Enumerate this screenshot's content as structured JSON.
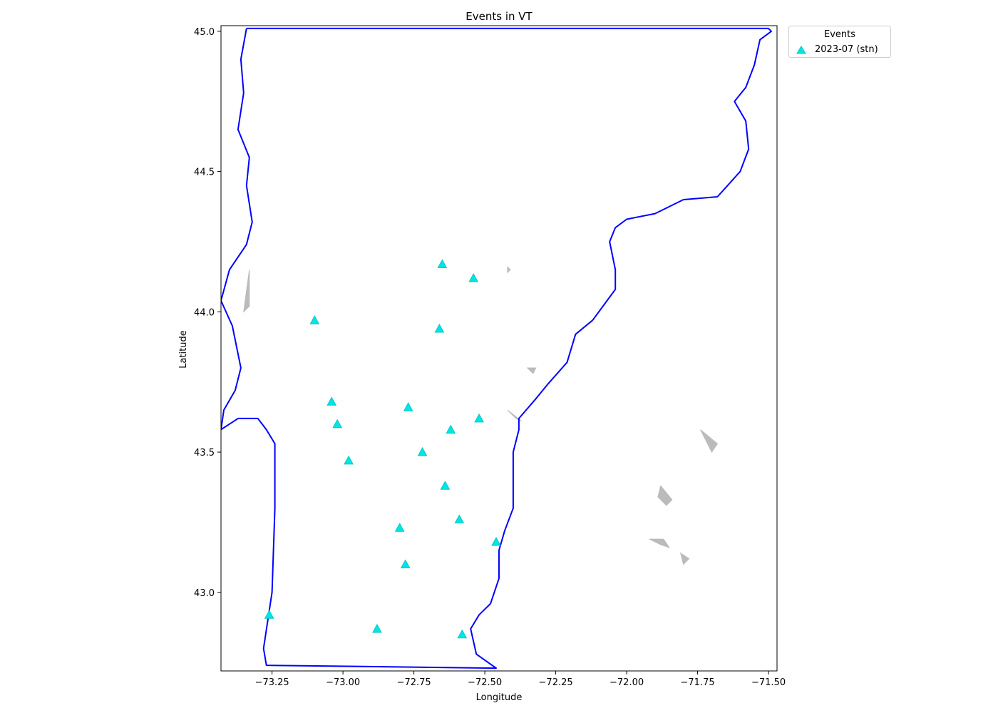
{
  "chart_data": {
    "type": "scatter",
    "title": "Events in VT",
    "xlabel": "Longitude",
    "ylabel": "Latitude",
    "xlim": [
      -73.43,
      -71.47
    ],
    "ylim": [
      42.72,
      45.02
    ],
    "xticks": [
      -73.25,
      -73.0,
      -72.75,
      -72.5,
      -72.25,
      -72.0,
      -71.75,
      -71.5
    ],
    "xtick_labels": [
      "−73.25",
      "−73.00",
      "−72.75",
      "−72.50",
      "−72.25",
      "−72.00",
      "−71.75",
      "−71.50"
    ],
    "yticks": [
      43.0,
      43.5,
      44.0,
      44.5,
      45.0
    ],
    "ytick_labels": [
      "43.0",
      "43.5",
      "44.0",
      "44.5",
      "45.0"
    ],
    "grid": false,
    "legend": {
      "title": "Events",
      "placement": "outside-top-right"
    },
    "series": [
      {
        "name": "2023-07 (stn)",
        "marker": "triangle",
        "color": "#00e5e5",
        "points": [
          {
            "x": -72.65,
            "y": 44.17
          },
          {
            "x": -72.54,
            "y": 44.12
          },
          {
            "x": -73.1,
            "y": 43.97
          },
          {
            "x": -72.66,
            "y": 43.94
          },
          {
            "x": -73.04,
            "y": 43.68
          },
          {
            "x": -72.77,
            "y": 43.66
          },
          {
            "x": -72.52,
            "y": 43.62
          },
          {
            "x": -73.02,
            "y": 43.6
          },
          {
            "x": -72.62,
            "y": 43.58
          },
          {
            "x": -72.72,
            "y": 43.5
          },
          {
            "x": -72.98,
            "y": 43.47
          },
          {
            "x": -72.64,
            "y": 43.38
          },
          {
            "x": -72.59,
            "y": 43.26
          },
          {
            "x": -72.8,
            "y": 43.23
          },
          {
            "x": -72.46,
            "y": 43.18
          },
          {
            "x": -72.78,
            "y": 43.1
          },
          {
            "x": -73.26,
            "y": 42.92
          },
          {
            "x": -72.88,
            "y": 42.87
          },
          {
            "x": -72.58,
            "y": 42.85
          }
        ]
      }
    ],
    "boundary": {
      "name": "Vermont state boundary",
      "color": "#0000ff",
      "points": [
        [
          -73.34,
          45.01
        ],
        [
          -71.5,
          45.01
        ],
        [
          -71.49,
          45.0
        ],
        [
          -71.53,
          44.97
        ],
        [
          -71.55,
          44.88
        ],
        [
          -71.58,
          44.8
        ],
        [
          -71.62,
          44.75
        ],
        [
          -71.58,
          44.68
        ],
        [
          -71.57,
          44.58
        ],
        [
          -71.6,
          44.5
        ],
        [
          -71.68,
          44.41
        ],
        [
          -71.8,
          44.4
        ],
        [
          -71.9,
          44.35
        ],
        [
          -72.0,
          44.33
        ],
        [
          -72.04,
          44.3
        ],
        [
          -72.06,
          44.25
        ],
        [
          -72.04,
          44.15
        ],
        [
          -72.04,
          44.08
        ],
        [
          -72.12,
          43.97
        ],
        [
          -72.18,
          43.92
        ],
        [
          -72.21,
          43.82
        ],
        [
          -72.28,
          43.74
        ],
        [
          -72.32,
          43.69
        ],
        [
          -72.38,
          43.62
        ],
        [
          -72.38,
          43.58
        ],
        [
          -72.4,
          43.5
        ],
        [
          -72.4,
          43.4
        ],
        [
          -72.4,
          43.3
        ],
        [
          -72.43,
          43.22
        ],
        [
          -72.45,
          43.15
        ],
        [
          -72.45,
          43.05
        ],
        [
          -72.48,
          42.96
        ],
        [
          -72.52,
          42.92
        ],
        [
          -72.55,
          42.87
        ],
        [
          -72.53,
          42.78
        ],
        [
          -72.46,
          42.73
        ],
        [
          -73.27,
          42.74
        ],
        [
          -73.28,
          42.8
        ],
        [
          -73.25,
          43.0
        ],
        [
          -73.24,
          43.3
        ],
        [
          -73.24,
          43.53
        ],
        [
          -73.27,
          43.58
        ],
        [
          -73.3,
          43.62
        ],
        [
          -73.37,
          43.62
        ],
        [
          -73.43,
          43.58
        ],
        [
          -73.42,
          43.65
        ],
        [
          -73.38,
          43.72
        ],
        [
          -73.36,
          43.8
        ],
        [
          -73.39,
          43.95
        ],
        [
          -73.43,
          44.04
        ],
        [
          -73.4,
          44.15
        ],
        [
          -73.34,
          44.24
        ],
        [
          -73.32,
          44.32
        ],
        [
          -73.34,
          44.45
        ],
        [
          -73.33,
          44.55
        ],
        [
          -73.37,
          44.65
        ],
        [
          -73.35,
          44.78
        ],
        [
          -73.36,
          44.9
        ],
        [
          -73.34,
          45.01
        ]
      ]
    },
    "water_features": [
      {
        "name": "lake",
        "color": "#bbbbbb",
        "points": [
          [
            -72.42,
            44.16
          ],
          [
            -72.41,
            44.15
          ],
          [
            -72.42,
            44.14
          ]
        ]
      },
      {
        "name": "lake",
        "color": "#bbbbbb",
        "points": [
          [
            -71.88,
            43.38
          ],
          [
            -71.84,
            43.33
          ],
          [
            -71.86,
            43.31
          ],
          [
            -71.89,
            43.34
          ]
        ]
      },
      {
        "name": "lake",
        "color": "#bbbbbb",
        "points": [
          [
            -71.92,
            43.19
          ],
          [
            -71.88,
            43.17
          ],
          [
            -71.85,
            43.16
          ],
          [
            -71.87,
            43.19
          ]
        ]
      },
      {
        "name": "lake",
        "color": "#bbbbbb",
        "points": [
          [
            -71.81,
            43.14
          ],
          [
            -71.78,
            43.12
          ],
          [
            -71.8,
            43.1
          ]
        ]
      },
      {
        "name": "lake",
        "color": "#bbbbbb",
        "points": [
          [
            -71.74,
            43.58
          ],
          [
            -71.7,
            43.5
          ],
          [
            -71.68,
            43.53
          ]
        ]
      },
      {
        "name": "lake",
        "color": "#bbbbbb",
        "points": [
          [
            -72.35,
            43.8
          ],
          [
            -72.33,
            43.78
          ],
          [
            -72.32,
            43.8
          ]
        ]
      },
      {
        "name": "lake",
        "color": "#bbbbbb",
        "points": [
          [
            -72.42,
            43.65
          ],
          [
            -72.39,
            43.62
          ],
          [
            -72.37,
            43.61
          ]
        ]
      },
      {
        "name": "lake",
        "color": "#bbbbbb",
        "points": [
          [
            -73.33,
            44.15
          ],
          [
            -73.35,
            44.0
          ],
          [
            -73.33,
            44.02
          ]
        ]
      }
    ]
  }
}
